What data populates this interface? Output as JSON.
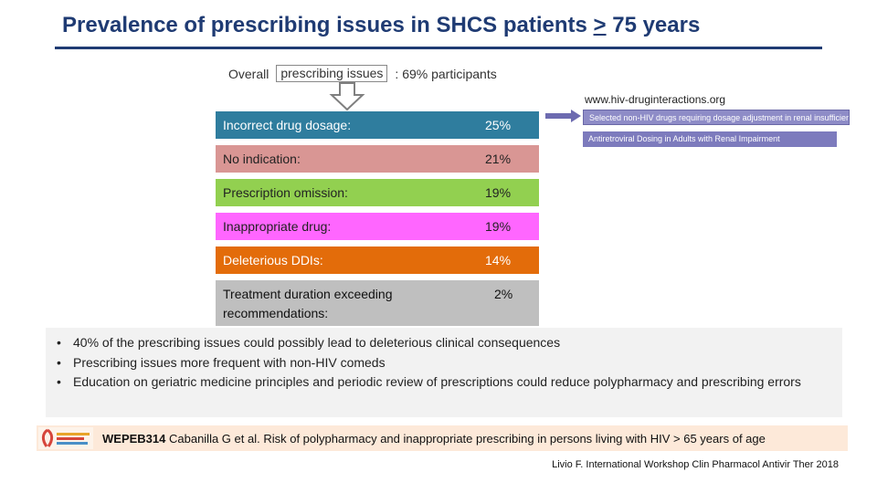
{
  "title": {
    "prefix": "Prevalence of prescribing issues in SHCS patients ",
    "ge_symbol": ">",
    "suffix": " 75 years"
  },
  "overall": {
    "lead": "Overall",
    "boxed": "prescribing issues",
    "rest": ": 69% participants"
  },
  "website": "www.hiv-druginteractions.org",
  "issues": [
    {
      "label": "Incorrect drug dosage:",
      "percent": "25%",
      "color": "#2f7d9e"
    },
    {
      "label": "No indication:",
      "percent": "21%",
      "color": "#d99694"
    },
    {
      "label": "Prescription omission:",
      "percent": "19%",
      "color": "#92d050"
    },
    {
      "label": "Inappropriate drug:",
      "percent": "19%",
      "color": "#ff66ff"
    },
    {
      "label": "Deleterious DDIs:",
      "percent": "14%",
      "color": "#e36c0a"
    },
    {
      "label": "Treatment duration exceeding recommendations:",
      "percent": "2%",
      "color": "#bfbfbf"
    }
  ],
  "references": {
    "thumb1": "Selected non-HIV drugs requiring dosage adjustment in renal insufficiency",
    "thumb2": "Antiretroviral Dosing in Adults with Renal Impairment"
  },
  "bullets": [
    "40% of the prescribing issues could possibly lead to deleterious clinical consequences",
    "Prescribing issues more frequent with non-HIV comeds",
    "Education on geriatric medicine principles and periodic review of prescriptions could reduce polypharmacy and prescribing errors"
  ],
  "citation": {
    "code": "WEPEB314",
    "text": " Cabanilla G et al. Risk of polypharmacy and inappropriate prescribing in persons living with HIV > 65 years of age"
  },
  "footer": "Livio F. International Workshop Clin Pharmacol Antivir Ther 2018",
  "colors": {
    "title": "#1f3b73",
    "bullet_bg": "#f2f2f2",
    "citation_bg": "#fde9d9"
  }
}
